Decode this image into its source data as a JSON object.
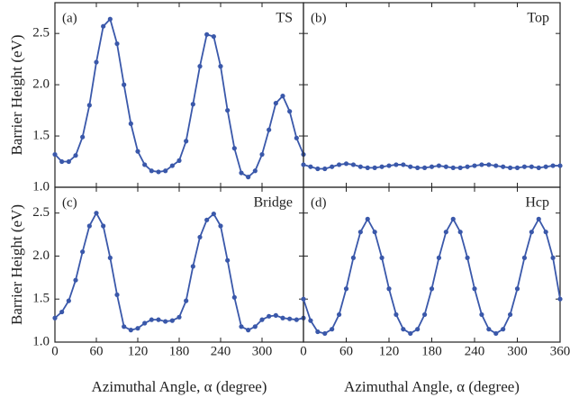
{
  "chart_data": [
    {
      "type": "line",
      "panel_label": "(a)",
      "name": "TS",
      "y_label": "Barrier Height  (eV)",
      "x": [
        0,
        10,
        20,
        30,
        40,
        50,
        60,
        70,
        80,
        90,
        100,
        110,
        120,
        130,
        140,
        150,
        160,
        170,
        180,
        190,
        200,
        210,
        220,
        230,
        240,
        250,
        260,
        270,
        280,
        290,
        300,
        310,
        320,
        330,
        340,
        350,
        360
      ],
      "values": [
        1.32,
        1.25,
        1.25,
        1.31,
        1.49,
        1.8,
        2.22,
        2.57,
        2.64,
        2.4,
        2.0,
        1.62,
        1.35,
        1.22,
        1.16,
        1.15,
        1.16,
        1.21,
        1.26,
        1.45,
        1.81,
        2.18,
        2.49,
        2.47,
        2.18,
        1.75,
        1.38,
        1.14,
        1.1,
        1.16,
        1.32,
        1.56,
        1.82,
        1.89,
        1.74,
        1.48,
        1.32
      ],
      "color": "#3a58aa",
      "xlim": [
        0,
        360
      ],
      "xticks": [
        0,
        60,
        120,
        180,
        240,
        300,
        360
      ],
      "ylim": [
        1,
        2.8
      ],
      "yticks": [
        {
          "value": 1,
          "label": "1.0"
        },
        {
          "value": 1.5,
          "label": "1.5"
        },
        {
          "value": 2,
          "label": "2.0"
        },
        {
          "value": 2.5,
          "label": "2.5"
        }
      ]
    },
    {
      "type": "line",
      "panel_label": "(b)",
      "name": "Top",
      "x": [
        0,
        10,
        20,
        30,
        40,
        50,
        60,
        70,
        80,
        90,
        100,
        110,
        120,
        130,
        140,
        150,
        160,
        170,
        180,
        190,
        200,
        210,
        220,
        230,
        240,
        250,
        260,
        270,
        280,
        290,
        300,
        310,
        320,
        330,
        340,
        350,
        360
      ],
      "values": [
        1.22,
        1.2,
        1.18,
        1.18,
        1.2,
        1.22,
        1.23,
        1.22,
        1.2,
        1.19,
        1.19,
        1.2,
        1.21,
        1.22,
        1.22,
        1.2,
        1.19,
        1.19,
        1.2,
        1.21,
        1.2,
        1.19,
        1.19,
        1.2,
        1.21,
        1.22,
        1.22,
        1.21,
        1.2,
        1.19,
        1.19,
        1.2,
        1.2,
        1.19,
        1.2,
        1.21,
        1.21
      ],
      "color": "#3a58aa",
      "xlim": [
        0,
        360
      ],
      "xticks": [
        0,
        60,
        120,
        180,
        240,
        300,
        360
      ],
      "ylim": [
        1,
        2.8
      ],
      "yticks": [
        1,
        1.5,
        2,
        2.5
      ]
    },
    {
      "type": "line",
      "panel_label": "(c)",
      "name": "Bridge",
      "y_label": "Barrier Height  (eV)",
      "x_label": "Azimuthal Angle, α (degree)",
      "x": [
        0,
        10,
        20,
        30,
        40,
        50,
        60,
        70,
        80,
        90,
        100,
        110,
        120,
        130,
        140,
        150,
        160,
        170,
        180,
        190,
        200,
        210,
        220,
        230,
        240,
        250,
        260,
        270,
        280,
        290,
        300,
        310,
        320,
        330,
        340,
        350,
        360
      ],
      "values": [
        1.28,
        1.35,
        1.48,
        1.72,
        2.05,
        2.35,
        2.5,
        2.35,
        1.98,
        1.55,
        1.18,
        1.14,
        1.16,
        1.22,
        1.26,
        1.26,
        1.24,
        1.25,
        1.29,
        1.48,
        1.88,
        2.22,
        2.42,
        2.49,
        2.35,
        1.95,
        1.52,
        1.18,
        1.14,
        1.18,
        1.26,
        1.3,
        1.31,
        1.28,
        1.27,
        1.26,
        1.28
      ],
      "color": "#3a58aa",
      "xlim": [
        0,
        360
      ],
      "xticks": [
        0,
        60,
        120,
        180,
        240,
        300
      ],
      "ylim": [
        1,
        2.8
      ],
      "yticks": [
        {
          "value": 1,
          "label": "1.0"
        },
        {
          "value": 1.5,
          "label": "1.5"
        },
        {
          "value": 2,
          "label": "2.0"
        },
        {
          "value": 2.5,
          "label": "2.5"
        }
      ]
    },
    {
      "type": "line",
      "panel_label": "(d)",
      "name": "Hcp",
      "x_label": "Azimuthal Angle, α (degree)",
      "x": [
        0,
        10,
        20,
        30,
        40,
        50,
        60,
        70,
        80,
        90,
        100,
        110,
        120,
        130,
        140,
        150,
        160,
        170,
        180,
        190,
        200,
        210,
        220,
        230,
        240,
        250,
        260,
        270,
        280,
        290,
        300,
        310,
        320,
        330,
        340,
        350,
        360
      ],
      "values": [
        1.5,
        1.25,
        1.12,
        1.1,
        1.15,
        1.32,
        1.62,
        1.98,
        2.28,
        2.43,
        2.28,
        1.98,
        1.62,
        1.32,
        1.15,
        1.1,
        1.15,
        1.32,
        1.62,
        1.98,
        2.28,
        2.43,
        2.28,
        1.98,
        1.62,
        1.32,
        1.15,
        1.1,
        1.15,
        1.32,
        1.62,
        1.98,
        2.28,
        2.43,
        2.28,
        1.98,
        1.5
      ],
      "color": "#3a58aa",
      "xlim": [
        0,
        360
      ],
      "xticks": [
        0,
        60,
        120,
        180,
        240,
        300,
        360
      ],
      "ylim": [
        1,
        2.8
      ],
      "yticks": [
        1,
        1.5,
        2,
        2.5
      ]
    }
  ]
}
